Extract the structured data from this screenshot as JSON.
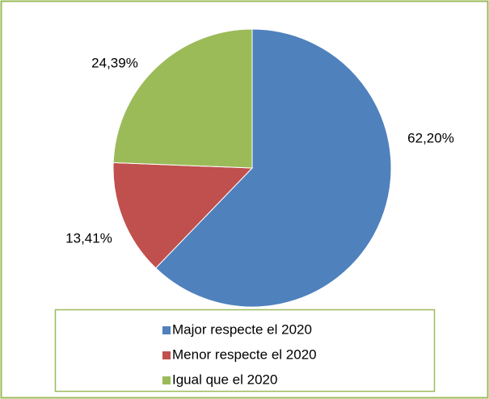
{
  "chart_data": {
    "type": "pie",
    "categories": [
      "Major respecte el 2020",
      "Menor respecte el 2020",
      "Igual que el 2020"
    ],
    "values": [
      62.2,
      13.41,
      24.39
    ],
    "value_labels": [
      "62,20%",
      "13,41%",
      "24,39%"
    ],
    "colors": [
      "#4f81bd",
      "#c0504d",
      "#9bbb59"
    ],
    "legend": "bottom"
  }
}
